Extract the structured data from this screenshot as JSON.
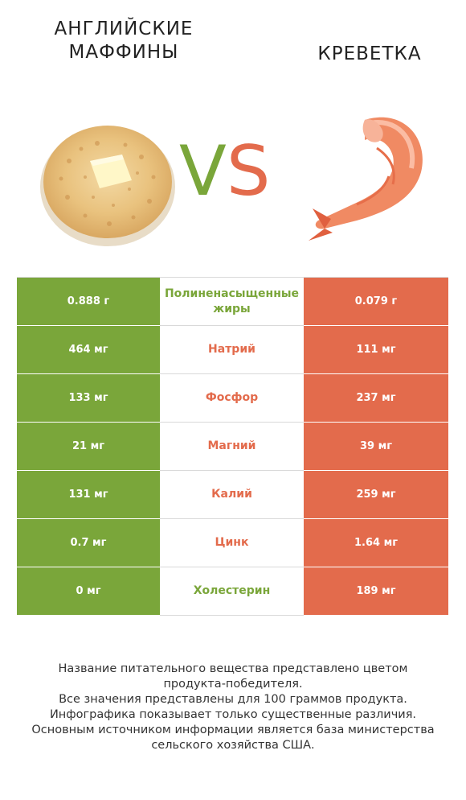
{
  "left_food": {
    "name": "Английские маффины"
  },
  "right_food": {
    "name": "Креветка"
  },
  "vs": {
    "v": "V",
    "s": "S"
  },
  "colors": {
    "winner_left": "#7aa63a",
    "winner_right": "#e36b4c"
  },
  "rows": [
    {
      "left": "0.888 г",
      "nutrient": "Полиненасыщенные жиры",
      "right": "0.079 г",
      "winner": "left"
    },
    {
      "left": "464 мг",
      "nutrient": "Натрий",
      "right": "111 мг",
      "winner": "right"
    },
    {
      "left": "133 мг",
      "nutrient": "Фосфор",
      "right": "237 мг",
      "winner": "right"
    },
    {
      "left": "21 мг",
      "nutrient": "Магний",
      "right": "39 мг",
      "winner": "right"
    },
    {
      "left": "131 мг",
      "nutrient": "Калий",
      "right": "259 мг",
      "winner": "right"
    },
    {
      "left": "0.7 мг",
      "nutrient": "Цинк",
      "right": "1.64 мг",
      "winner": "right"
    },
    {
      "left": "0 мг",
      "nutrient": "Холестерин",
      "right": "189 мг",
      "winner": "left"
    }
  ],
  "footer": {
    "line1": "Название питательного вещества представлено цветом",
    "line2": "продукта-победителя.",
    "line3": "Все значения представлены для 100 граммов продукта.",
    "line4": "Инфографика показывает только существенные различия.",
    "line5": "Основным источником информации является база министерства",
    "line6": "сельского хозяйства США."
  }
}
